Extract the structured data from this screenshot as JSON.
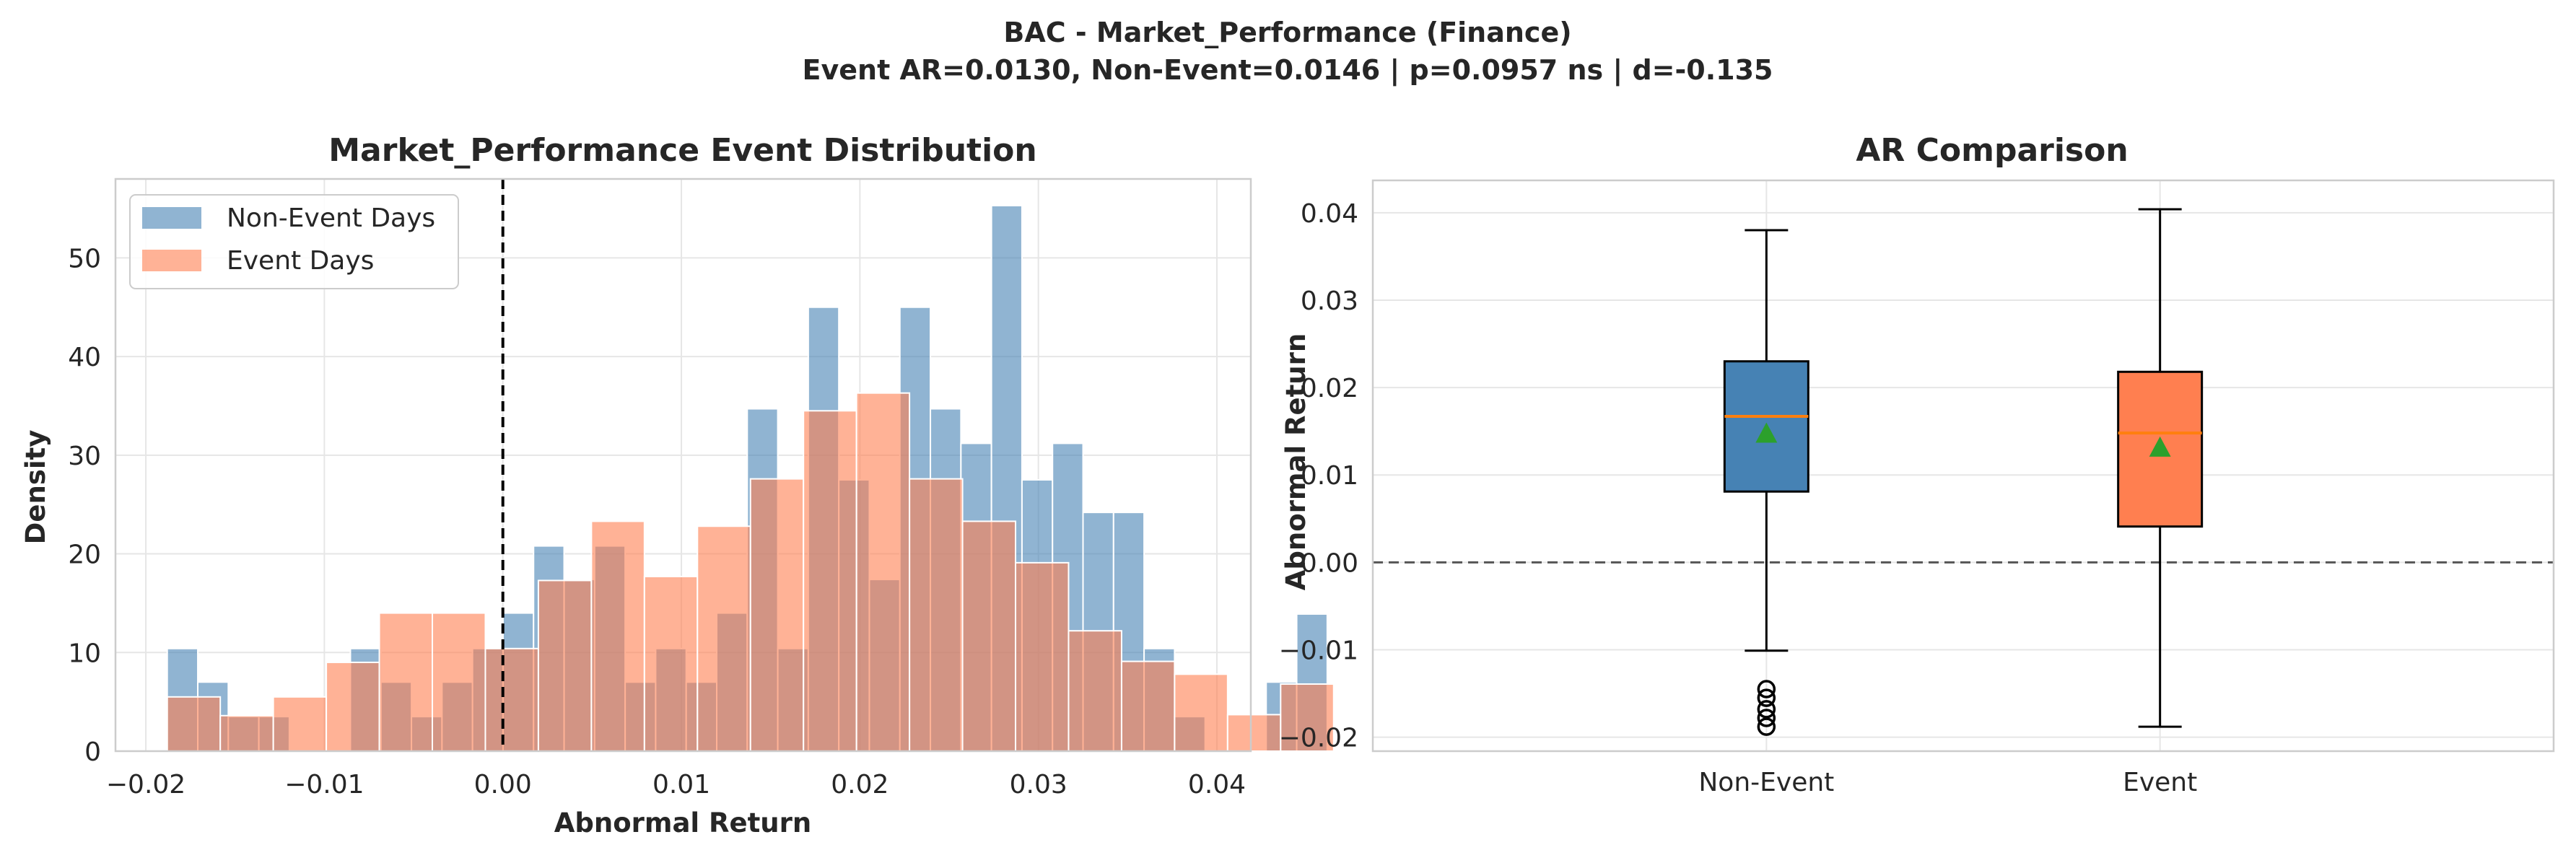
{
  "figure": {
    "suptitle_line1": "BAC - Market_Performance (Finance)",
    "suptitle_line2": "Event AR=0.0130, Non-Event=0.0146 | p=0.0957 ns | d=-0.135"
  },
  "chart_data": [
    {
      "type": "histogram",
      "title": "Market_Performance Event Distribution",
      "xlabel": "Abnormal Return",
      "ylabel": "Density",
      "xlim": [
        -0.0217,
        0.0419
      ],
      "ylim": [
        0,
        58
      ],
      "xticks": [
        -0.02,
        -0.01,
        0.0,
        0.01,
        0.02,
        0.03,
        0.04
      ],
      "xtick_labels": [
        "−0.02",
        "−0.01",
        "0.00",
        "0.01",
        "0.02",
        "0.03",
        "0.04"
      ],
      "yticks": [
        0,
        10,
        20,
        30,
        40,
        50
      ],
      "grid": true,
      "legend_position": "top-left",
      "reference_line": {
        "x": 0.0,
        "style": "dashed",
        "color": "#000000"
      },
      "series": [
        {
          "name": "Non-Event Days",
          "color": "#4682b4",
          "opacity": 0.6,
          "bin_start": -0.0188,
          "bin_width": 0.00171,
          "values": [
            10.4,
            7,
            3.5,
            3.5,
            0,
            0,
            10.4,
            7,
            3.5,
            7,
            10.4,
            14,
            20.8,
            17.4,
            20.8,
            7,
            10.4,
            7,
            14,
            34.7,
            10.4,
            45,
            27.5,
            17.4,
            45,
            34.7,
            31.2,
            55.3,
            27.5,
            31.2,
            24.2,
            24.2,
            10.4,
            3.5,
            0,
            0,
            7,
            13.9,
            0
          ]
        },
        {
          "name": "Event Days",
          "color": "#ff7f50",
          "opacity": 0.6,
          "bin_start": -0.0188,
          "bin_width": 0.00297,
          "values": [
            5.5,
            3.6,
            5.5,
            9,
            14,
            14,
            10.4,
            17.3,
            23.3,
            17.7,
            22.8,
            27.6,
            34.5,
            36.3,
            27.6,
            23.3,
            19.1,
            12.2,
            9.1,
            7.8,
            3.7,
            6.8
          ]
        }
      ]
    },
    {
      "type": "box",
      "title": "AR Comparison",
      "xlabel": "",
      "ylabel": "Abnormal Return",
      "ylim": [
        -0.0216,
        0.0437
      ],
      "yticks": [
        -0.02,
        -0.01,
        0.0,
        0.01,
        0.02,
        0.03,
        0.04
      ],
      "ytick_labels": [
        "−0.02",
        "−0.01",
        "0.00",
        "0.01",
        "0.02",
        "0.03",
        "0.04"
      ],
      "categories": [
        "Non-Event",
        "Event"
      ],
      "grid": true,
      "reference_line": {
        "y": 0.0,
        "style": "dashed",
        "color": "#555555"
      },
      "median_color": "#ff7f0e",
      "mean_marker_color": "#2ca02c",
      "boxes": [
        {
          "category": "Non-Event",
          "color": "#4682b4",
          "whislo": -0.0101,
          "q1": 0.0081,
          "median": 0.0167,
          "q3": 0.023,
          "whishi": 0.038,
          "mean": 0.0146,
          "outliers": [
            -0.0145,
            -0.0155,
            -0.0168,
            -0.0178,
            -0.0188
          ]
        },
        {
          "category": "Event",
          "color": "#ff7f50",
          "whislo": -0.0188,
          "q1": 0.0041,
          "median": 0.0148,
          "q3": 0.0218,
          "whishi": 0.0404,
          "mean": 0.013,
          "outliers": []
        }
      ]
    }
  ]
}
